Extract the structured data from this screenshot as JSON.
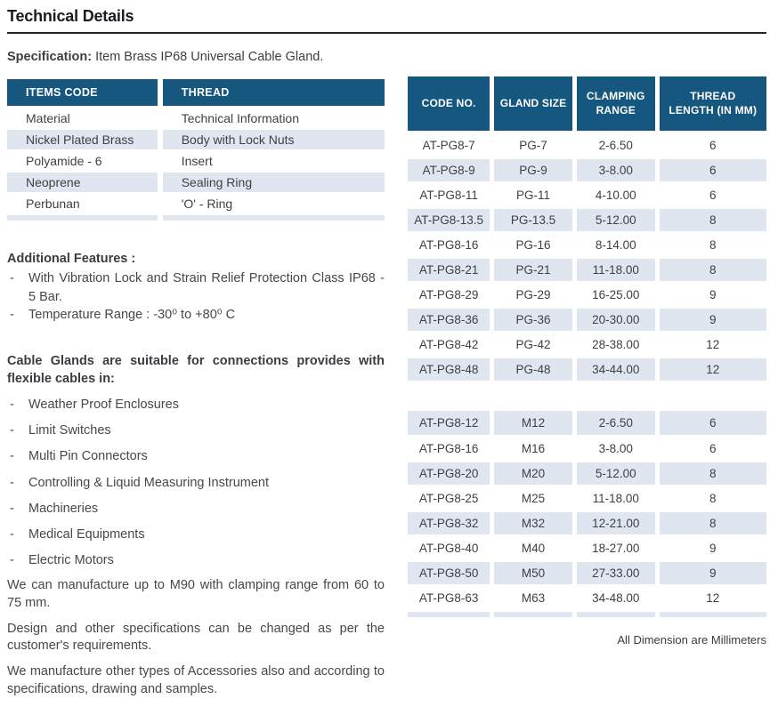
{
  "page": {
    "title": "Technical Details"
  },
  "colors": {
    "header_blue": "#15577E",
    "row_alt_blue": "#DFE6EF",
    "rule_dark": "#24242B"
  },
  "spec": {
    "label": "Specification:",
    "text": "Item Brass IP68 Universal Cable Gland."
  },
  "marker": "-",
  "items_table": {
    "headers": [
      "ITEMS CODE",
      "THREAD"
    ],
    "rows": [
      [
        "Material",
        "Technical Information"
      ],
      [
        "Nickel Plated Brass",
        "Body with Lock Nuts"
      ],
      [
        "Polyamide - 6",
        "Insert"
      ],
      [
        "Neoprene",
        "Sealing Ring"
      ],
      [
        "Perbunan",
        "'O' - Ring"
      ]
    ]
  },
  "additional_features": {
    "heading": "Additional Features :",
    "items": [
      "With Vibration Lock and Strain Relief Protection Class IP68 - 5 Bar.",
      "Temperature Range : -30⁰ to +80⁰ C"
    ]
  },
  "suitable": {
    "heading": "Cable Glands are suitable for connections provides with flexible cables in:",
    "items": [
      "Weather Proof Enclosures",
      "Limit Switches",
      "Multi Pin Connectors",
      "Controlling & Liquid Measuring Instrument",
      "Machineries",
      "Medical Equipments",
      "Electric Motors"
    ]
  },
  "paragraphs": [
    "We can manufacture up to M90 with clamping range from 60 to 75 mm.",
    "Design and other specifications can be changed as per the customer's requirements.",
    "We manufacture other types of Accessories also and according to specifications, drawing and samples."
  ],
  "gland_table": {
    "headers": [
      [
        "CODE NO."
      ],
      [
        "GLAND SIZE"
      ],
      [
        "CLAMPING",
        "RANGE"
      ],
      [
        "THREAD",
        "LENGTH (IN MM)"
      ]
    ],
    "pg_rows": [
      [
        "AT-PG8-7",
        "PG-7",
        "2-6.50",
        "6"
      ],
      [
        "AT-PG8-9",
        "PG-9",
        "3-8.00",
        "6"
      ],
      [
        "AT-PG8-11",
        "PG-11",
        "4-10.00",
        "6"
      ],
      [
        "AT-PG8-13.5",
        "PG-13.5",
        "5-12.00",
        "8"
      ],
      [
        "AT-PG8-16",
        "PG-16",
        "8-14.00",
        "8"
      ],
      [
        "AT-PG8-21",
        "PG-21",
        "11-18.00",
        "8"
      ],
      [
        "AT-PG8-29",
        "PG-29",
        "16-25.00",
        "9"
      ],
      [
        "AT-PG8-36",
        "PG-36",
        "20-30.00",
        "9"
      ],
      [
        "AT-PG8-42",
        "PG-42",
        "28-38.00",
        "12"
      ],
      [
        "AT-PG8-48",
        "PG-48",
        "34-44.00",
        "12"
      ]
    ],
    "m_rows": [
      [
        "AT-PG8-12",
        "M12",
        "2-6.50",
        "6"
      ],
      [
        "AT-PG8-16",
        "M16",
        "3-8.00",
        "6"
      ],
      [
        "AT-PG8-20",
        "M20",
        "5-12.00",
        "8"
      ],
      [
        "AT-PG8-25",
        "M25",
        "11-18.00",
        "8"
      ],
      [
        "AT-PG8-32",
        "M32",
        "12-21.00",
        "8"
      ],
      [
        "AT-PG8-40",
        "M40",
        "18-27.00",
        "9"
      ],
      [
        "AT-PG8-50",
        "M50",
        "27-33.00",
        "9"
      ],
      [
        "AT-PG8-63",
        "M63",
        "34-48.00",
        "12"
      ]
    ],
    "footnote": "All Dimension are Millimeters"
  }
}
